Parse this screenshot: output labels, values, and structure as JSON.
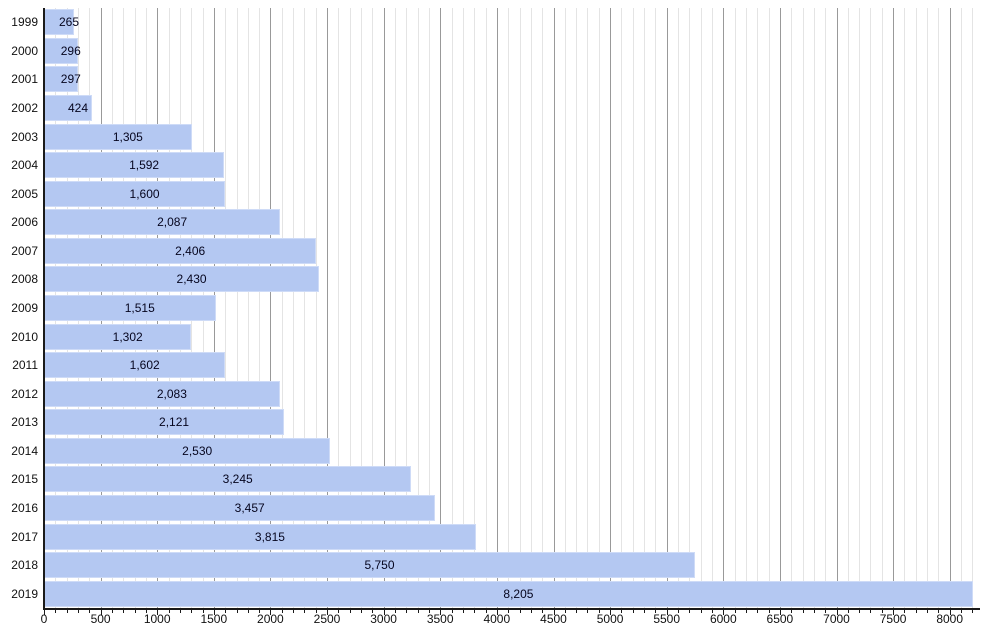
{
  "chart_data": {
    "type": "bar",
    "orientation": "horizontal",
    "title": "",
    "xlabel": "",
    "ylabel": "",
    "legend": "none",
    "grid": "vertical",
    "categories": [
      "1999",
      "2000",
      "2001",
      "2002",
      "2003",
      "2004",
      "2005",
      "2006",
      "2007",
      "2008",
      "2009",
      "2010",
      "2011",
      "2012",
      "2013",
      "2014",
      "2015",
      "2016",
      "2017",
      "2018",
      "2019"
    ],
    "values": [
      265,
      296,
      297,
      424,
      1305,
      1592,
      1600,
      2087,
      2406,
      2430,
      1515,
      1302,
      1602,
      2083,
      2121,
      2530,
      3245,
      3457,
      3815,
      5750,
      8205
    ],
    "value_labels": [
      "265",
      "296",
      "297",
      "424",
      "1,305",
      "1,592",
      "1,600",
      "2,087",
      "2,406",
      "2,430",
      "1,515",
      "1,302",
      "1,602",
      "2,083",
      "2,121",
      "2,530",
      "3,245",
      "3,457",
      "3,815",
      "5,750",
      "8,205"
    ],
    "xlim": [
      0,
      8250
    ],
    "x_major_ticks": [
      0,
      500,
      1000,
      1500,
      2000,
      2500,
      3000,
      3500,
      4000,
      4500,
      5000,
      5500,
      6000,
      6500,
      7000,
      7500,
      8000
    ],
    "x_major_tick_labels": [
      "0",
      "500",
      "1000",
      "1500",
      "2000",
      "2500",
      "3000",
      "3500",
      "4000",
      "4500",
      "5000",
      "5500",
      "6000",
      "6500",
      "7000",
      "7500",
      "8000"
    ],
    "x_minor_tick_interval": 100,
    "colors": {
      "background": "#ffffff",
      "bar_fill": "#b4c8f2",
      "bar_border": "#cedbf7",
      "value_label": "#05051e",
      "axis": "#1a1a1a",
      "major_grid": "#999999",
      "minor_grid": "#e4e4e4",
      "tick_label": "#111111"
    }
  }
}
